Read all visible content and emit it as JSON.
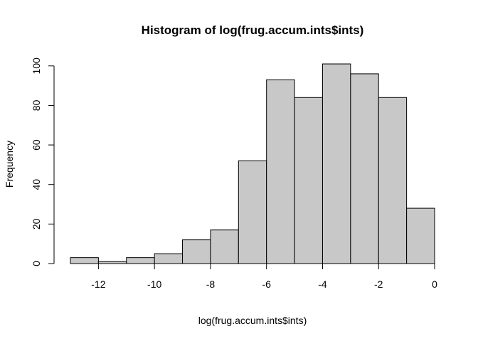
{
  "chart_data": {
    "type": "bar",
    "title": "Histogram of log(frug.accum.ints$ints)",
    "xlabel": "log(frug.accum.ints$ints)",
    "ylabel": "Frequency",
    "bins": [
      {
        "x0": -13,
        "x1": -12,
        "count": 3
      },
      {
        "x0": -12,
        "x1": -11,
        "count": 1
      },
      {
        "x0": -11,
        "x1": -10,
        "count": 3
      },
      {
        "x0": -10,
        "x1": -9,
        "count": 5
      },
      {
        "x0": -9,
        "x1": -8,
        "count": 12
      },
      {
        "x0": -8,
        "x1": -7,
        "count": 17
      },
      {
        "x0": -7,
        "x1": -6,
        "count": 52
      },
      {
        "x0": -6,
        "x1": -5,
        "count": 93
      },
      {
        "x0": -5,
        "x1": -4,
        "count": 84
      },
      {
        "x0": -4,
        "x1": -3,
        "count": 101
      },
      {
        "x0": -3,
        "x1": -2,
        "count": 96
      },
      {
        "x0": -2,
        "x1": -1,
        "count": 84
      },
      {
        "x0": -1,
        "x1": 0,
        "count": 28
      }
    ],
    "xlim": [
      -13,
      0
    ],
    "ylim": [
      0,
      101
    ],
    "x_ticks": [
      -12,
      -10,
      -8,
      -6,
      -4,
      -2,
      0
    ],
    "x_tick_labels": [
      "-12",
      "-10",
      "-8",
      "-6",
      "-4",
      "-2",
      "0"
    ],
    "y_ticks": [
      0,
      20,
      40,
      60,
      80,
      100
    ],
    "y_tick_labels": [
      "0",
      "20",
      "40",
      "60",
      "80",
      "100"
    ],
    "grid": false,
    "colors": {
      "bar_fill": "#c8c8c8",
      "bar_stroke": "#000000"
    }
  }
}
